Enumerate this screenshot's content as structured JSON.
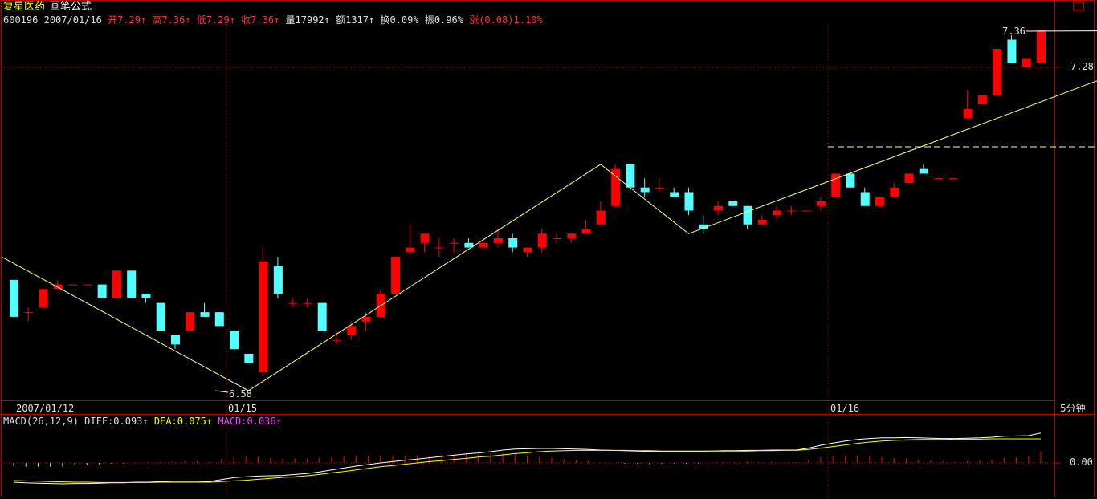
{
  "header": {
    "stock_name": "复星医药",
    "formula_name": "画笔公式",
    "code": "600196",
    "date": "2007/01/16",
    "fields": [
      {
        "label": "开",
        "value": "7.29",
        "arrow": "↑",
        "color": "red"
      },
      {
        "label": "高",
        "value": "7.36",
        "arrow": "↑",
        "color": "red"
      },
      {
        "label": "低",
        "value": "7.29",
        "arrow": "↑",
        "color": "red"
      },
      {
        "label": "收",
        "value": "7.36",
        "arrow": "↑",
        "color": "red"
      },
      {
        "label": "量",
        "value": "17992",
        "arrow": "↑",
        "color": "white"
      },
      {
        "label": "额",
        "value": "1317",
        "arrow": "↑",
        "color": "white"
      },
      {
        "label": "换",
        "value": "0.09%",
        "arrow": "",
        "color": "white"
      },
      {
        "label": "振",
        "value": "0.96%",
        "arrow": "",
        "color": "white"
      },
      {
        "label": "涨",
        "value": "(0.08)1.10%",
        "arrow": "",
        "color": "red"
      }
    ]
  },
  "macd_legend": {
    "name": "MACD(26,12,9)",
    "diff": "DIFF:0.093",
    "dea": "DEA:0.075",
    "macd": "MACD:0.036",
    "arrow": "↑"
  },
  "x_labels": {
    "first": "2007/01/12",
    "second": "01/15",
    "third": "01/16"
  },
  "period_label": "5分钟",
  "annotations": {
    "high": "7.36",
    "low": "6.58"
  },
  "y_labels": {
    "price": "7.28",
    "macd_zero": "0.00"
  },
  "colors": {
    "up": "#ff0000",
    "down": "#54ffff",
    "frame": "#c00000",
    "zigzag": "#ffff80",
    "diff": "#ffffff",
    "dea": "#ffff00"
  },
  "chart_data": [
    {
      "type": "candlestick",
      "title": "复星医药 画笔公式",
      "x": [
        "2007/01/12",
        "01/15",
        "01/16"
      ],
      "ylim": [
        6.58,
        7.36
      ],
      "candles": [
        {
          "o": 6.82,
          "h": 6.82,
          "l": 6.74,
          "c": 6.74
        },
        {
          "o": 6.75,
          "h": 6.76,
          "l": 6.73,
          "c": 6.75
        },
        {
          "o": 6.76,
          "h": 6.8,
          "l": 6.76,
          "c": 6.8
        },
        {
          "o": 6.8,
          "h": 6.82,
          "l": 6.8,
          "c": 6.81
        },
        {
          "o": 6.81,
          "h": 6.81,
          "l": 6.81,
          "c": 6.81
        },
        {
          "o": 6.81,
          "h": 6.81,
          "l": 6.81,
          "c": 6.81
        },
        {
          "o": 6.81,
          "h": 6.81,
          "l": 6.78,
          "c": 6.78
        },
        {
          "o": 6.78,
          "h": 6.84,
          "l": 6.78,
          "c": 6.84
        },
        {
          "o": 6.84,
          "h": 6.84,
          "l": 6.78,
          "c": 6.78
        },
        {
          "o": 6.79,
          "h": 6.79,
          "l": 6.77,
          "c": 6.78
        },
        {
          "o": 6.77,
          "h": 6.77,
          "l": 6.71,
          "c": 6.71
        },
        {
          "o": 6.7,
          "h": 6.7,
          "l": 6.67,
          "c": 6.68
        },
        {
          "o": 6.71,
          "h": 6.75,
          "l": 6.71,
          "c": 6.75
        },
        {
          "o": 6.75,
          "h": 6.77,
          "l": 6.74,
          "c": 6.74
        },
        {
          "o": 6.75,
          "h": 6.75,
          "l": 6.72,
          "c": 6.72
        },
        {
          "o": 6.71,
          "h": 6.71,
          "l": 6.67,
          "c": 6.67
        },
        {
          "o": 6.66,
          "h": 6.66,
          "l": 6.64,
          "c": 6.64
        },
        {
          "o": 6.62,
          "h": 6.89,
          "l": 6.61,
          "c": 6.86
        },
        {
          "o": 6.85,
          "h": 6.87,
          "l": 6.78,
          "c": 6.79
        },
        {
          "o": 6.77,
          "h": 6.78,
          "l": 6.76,
          "c": 6.77
        },
        {
          "o": 6.77,
          "h": 6.78,
          "l": 6.76,
          "c": 6.77
        },
        {
          "o": 6.77,
          "h": 6.77,
          "l": 6.71,
          "c": 6.71
        },
        {
          "o": 6.69,
          "h": 6.71,
          "l": 6.68,
          "c": 6.69
        },
        {
          "o": 6.7,
          "h": 6.73,
          "l": 6.69,
          "c": 6.72
        },
        {
          "o": 6.73,
          "h": 6.75,
          "l": 6.71,
          "c": 6.74
        },
        {
          "o": 6.74,
          "h": 6.8,
          "l": 6.74,
          "c": 6.79
        },
        {
          "o": 6.79,
          "h": 6.87,
          "l": 6.79,
          "c": 6.87
        },
        {
          "o": 6.88,
          "h": 6.94,
          "l": 6.88,
          "c": 6.89
        },
        {
          "o": 6.9,
          "h": 6.92,
          "l": 6.88,
          "c": 6.92
        },
        {
          "o": 6.89,
          "h": 6.91,
          "l": 6.87,
          "c": 6.89
        },
        {
          "o": 6.9,
          "h": 6.91,
          "l": 6.88,
          "c": 6.9
        },
        {
          "o": 6.9,
          "h": 6.91,
          "l": 6.89,
          "c": 6.89
        },
        {
          "o": 6.89,
          "h": 6.91,
          "l": 6.89,
          "c": 6.9
        },
        {
          "o": 6.9,
          "h": 6.93,
          "l": 6.89,
          "c": 6.91
        },
        {
          "o": 6.91,
          "h": 6.92,
          "l": 6.88,
          "c": 6.89
        },
        {
          "o": 6.88,
          "h": 6.89,
          "l": 6.87,
          "c": 6.89
        },
        {
          "o": 6.89,
          "h": 6.93,
          "l": 6.88,
          "c": 6.92
        },
        {
          "o": 6.91,
          "h": 6.92,
          "l": 6.9,
          "c": 6.91
        },
        {
          "o": 6.91,
          "h": 6.92,
          "l": 6.9,
          "c": 6.92
        },
        {
          "o": 6.92,
          "h": 6.95,
          "l": 6.92,
          "c": 6.93
        },
        {
          "o": 6.94,
          "h": 6.99,
          "l": 6.94,
          "c": 6.97
        },
        {
          "o": 6.98,
          "h": 7.07,
          "l": 6.98,
          "c": 7.06
        },
        {
          "o": 7.07,
          "h": 7.07,
          "l": 7.01,
          "c": 7.02
        },
        {
          "o": 7.02,
          "h": 7.04,
          "l": 7.0,
          "c": 7.01
        },
        {
          "o": 7.02,
          "h": 7.04,
          "l": 7.01,
          "c": 7.02
        },
        {
          "o": 7.01,
          "h": 7.02,
          "l": 7.0,
          "c": 7.0
        },
        {
          "o": 7.01,
          "h": 7.02,
          "l": 6.96,
          "c": 6.97
        },
        {
          "o": 6.94,
          "h": 6.96,
          "l": 6.92,
          "c": 6.93
        },
        {
          "o": 6.97,
          "h": 6.99,
          "l": 6.96,
          "c": 6.98
        },
        {
          "o": 6.99,
          "h": 6.99,
          "l": 6.98,
          "c": 6.98
        },
        {
          "o": 6.98,
          "h": 6.98,
          "l": 6.93,
          "c": 6.94
        },
        {
          "o": 6.94,
          "h": 6.96,
          "l": 6.94,
          "c": 6.95
        },
        {
          "o": 6.96,
          "h": 6.98,
          "l": 6.95,
          "c": 6.97
        },
        {
          "o": 6.97,
          "h": 6.98,
          "l": 6.96,
          "c": 6.97
        },
        {
          "o": 6.97,
          "h": 6.97,
          "l": 6.97,
          "c": 6.97
        },
        {
          "o": 6.98,
          "h": 7.0,
          "l": 6.97,
          "c": 6.99
        },
        {
          "o": 7.0,
          "h": 7.05,
          "l": 7.0,
          "c": 7.05
        },
        {
          "o": 7.05,
          "h": 7.06,
          "l": 7.02,
          "c": 7.02
        },
        {
          "o": 7.01,
          "h": 7.02,
          "l": 6.98,
          "c": 6.98
        },
        {
          "o": 6.98,
          "h": 7.0,
          "l": 6.98,
          "c": 7.0
        },
        {
          "o": 7.0,
          "h": 7.03,
          "l": 7.0,
          "c": 7.02
        },
        {
          "o": 7.03,
          "h": 7.05,
          "l": 7.03,
          "c": 7.05
        },
        {
          "o": 7.06,
          "h": 7.07,
          "l": 7.05,
          "c": 7.05
        },
        {
          "o": 7.04,
          "h": 7.04,
          "l": 7.04,
          "c": 7.04
        },
        {
          "o": 7.04,
          "h": 7.04,
          "l": 7.04,
          "c": 7.04
        },
        {
          "o": 7.17,
          "h": 7.23,
          "l": 7.17,
          "c": 7.19
        },
        {
          "o": 7.2,
          "h": 7.22,
          "l": 7.2,
          "c": 7.22
        },
        {
          "o": 7.22,
          "h": 7.32,
          "l": 7.22,
          "c": 7.32
        },
        {
          "o": 7.34,
          "h": 7.35,
          "l": 7.29,
          "c": 7.29
        },
        {
          "o": 7.28,
          "h": 7.3,
          "l": 7.28,
          "c": 7.3
        },
        {
          "o": 7.29,
          "h": 7.36,
          "l": 7.29,
          "c": 7.36
        }
      ]
    },
    {
      "type": "macd",
      "title": "MACD(26,12,9)",
      "diff_last": 0.093,
      "dea_last": 0.075,
      "macd_last": 0.036,
      "ylim": [
        -0.08,
        0.12
      ],
      "diff": [
        -0.06,
        -0.062,
        -0.063,
        -0.064,
        -0.065,
        -0.064,
        -0.064,
        -0.063,
        -0.062,
        -0.062,
        -0.06,
        -0.06,
        -0.058,
        -0.057,
        -0.057,
        -0.057,
        -0.058,
        -0.052,
        -0.046,
        -0.043,
        -0.041,
        -0.04,
        -0.039,
        -0.036,
        -0.033,
        -0.028,
        -0.022,
        -0.016,
        -0.01,
        -0.005,
        0.0,
        0.004,
        0.008,
        0.012,
        0.016,
        0.02,
        0.024,
        0.028,
        0.031,
        0.035,
        0.04,
        0.043,
        0.044,
        0.045,
        0.045,
        0.044,
        0.043,
        0.042,
        0.04,
        0.039,
        0.038,
        0.037,
        0.036,
        0.036,
        0.036,
        0.036,
        0.036,
        0.037,
        0.038,
        0.038,
        0.039,
        0.039,
        0.04,
        0.04,
        0.04,
        0.046,
        0.055,
        0.062,
        0.068,
        0.073,
        0.076,
        0.078,
        0.078,
        0.079,
        0.078,
        0.077,
        0.076,
        0.076,
        0.077,
        0.078,
        0.08,
        0.083,
        0.084,
        0.085,
        0.093
      ],
      "dea": [
        -0.055,
        -0.056,
        -0.057,
        -0.058,
        -0.059,
        -0.06,
        -0.06,
        -0.061,
        -0.061,
        -0.061,
        -0.061,
        -0.061,
        -0.06,
        -0.06,
        -0.06,
        -0.06,
        -0.06,
        -0.058,
        -0.056,
        -0.054,
        -0.051,
        -0.048,
        -0.045,
        -0.043,
        -0.04,
        -0.036,
        -0.031,
        -0.027,
        -0.022,
        -0.017,
        -0.012,
        -0.008,
        -0.004,
        0.0,
        0.004,
        0.007,
        0.011,
        0.014,
        0.018,
        0.021,
        0.025,
        0.029,
        0.032,
        0.035,
        0.037,
        0.038,
        0.039,
        0.039,
        0.039,
        0.039,
        0.039,
        0.038,
        0.038,
        0.037,
        0.037,
        0.037,
        0.037,
        0.037,
        0.037,
        0.037,
        0.037,
        0.038,
        0.038,
        0.039,
        0.039,
        0.042,
        0.046,
        0.051,
        0.056,
        0.061,
        0.065,
        0.068,
        0.07,
        0.072,
        0.073,
        0.073,
        0.073,
        0.074,
        0.074,
        0.074,
        0.075,
        0.075,
        0.075,
        0.075,
        0.075
      ],
      "macd": [
        -0.01,
        -0.012,
        -0.012,
        -0.012,
        -0.012,
        -0.008,
        -0.008,
        -0.004,
        -0.002,
        -0.002,
        0.002,
        0.002,
        0.004,
        0.006,
        0.006,
        0.006,
        0.004,
        0.012,
        0.02,
        0.022,
        0.02,
        0.016,
        0.012,
        0.014,
        0.014,
        0.016,
        0.018,
        0.022,
        0.024,
        0.024,
        0.024,
        0.024,
        0.024,
        0.024,
        0.024,
        0.026,
        0.026,
        0.028,
        0.026,
        0.028,
        0.03,
        0.028,
        0.024,
        0.02,
        0.016,
        0.012,
        0.008,
        0.006,
        0.002,
        0.0,
        -0.002,
        -0.002,
        -0.004,
        -0.002,
        -0.002,
        -0.002,
        -0.002,
        0.0,
        0.002,
        0.002,
        0.004,
        0.002,
        0.004,
        0.002,
        0.002,
        0.008,
        0.018,
        0.022,
        0.024,
        0.024,
        0.022,
        0.02,
        0.016,
        0.014,
        0.01,
        0.008,
        0.006,
        0.004,
        0.006,
        0.008,
        0.01,
        0.016,
        0.018,
        0.02,
        0.036
      ]
    }
  ]
}
